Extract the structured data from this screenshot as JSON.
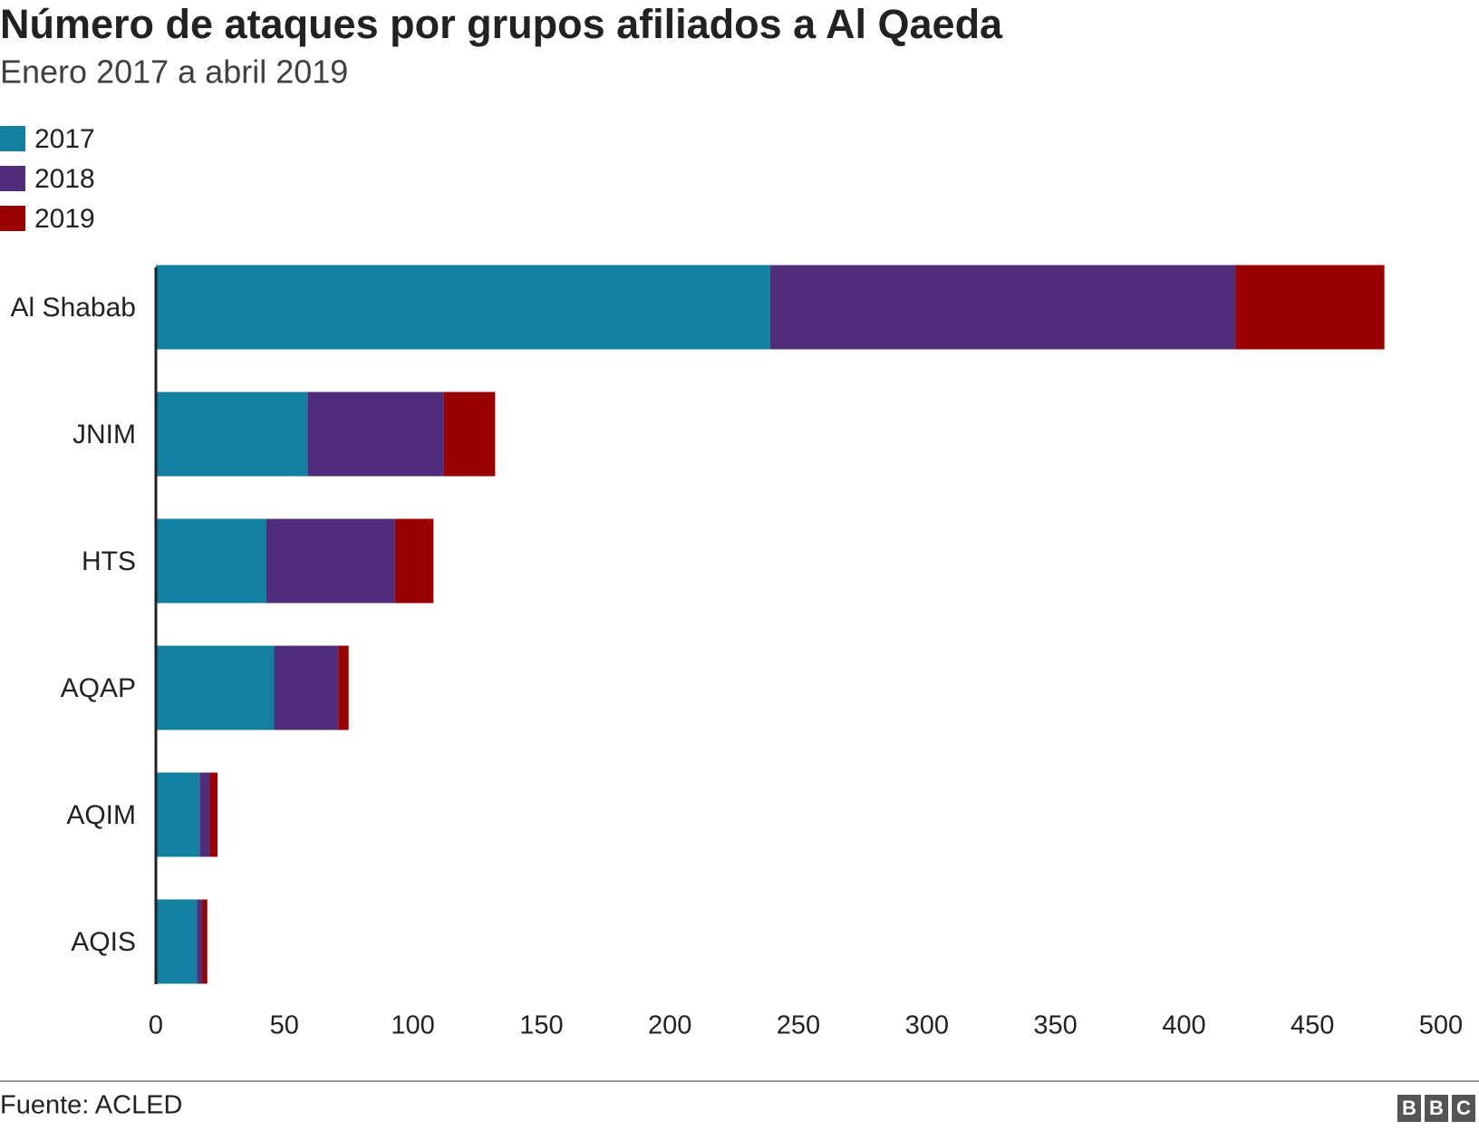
{
  "chart_data": {
    "type": "stacked-barh",
    "title": "Número de ataques por grupos afiliados a Al Qaeda",
    "subtitle": "Enero 2017 a abril 2019",
    "categories": [
      "Al Shabab",
      "JNIM",
      "HTS",
      "AQAP",
      "AQIM",
      "AQIS"
    ],
    "series": [
      {
        "name": "2017",
        "color": "#1380a1",
        "values": [
          239,
          59,
          43,
          46,
          17,
          16
        ]
      },
      {
        "name": "2018",
        "color": "#4f2d7b",
        "values": [
          181,
          53,
          50,
          25,
          4,
          2
        ]
      },
      {
        "name": "2019",
        "color": "#990000",
        "values": [
          58,
          20,
          15,
          4,
          3,
          2
        ]
      }
    ],
    "xlim": [
      0,
      500
    ],
    "xticks": [
      0,
      50,
      100,
      150,
      200,
      250,
      300,
      350,
      400,
      450,
      500
    ],
    "grid": false,
    "legend": "top-left"
  },
  "footer": {
    "source": "Fuente: ACLED",
    "logo": [
      "B",
      "B",
      "C"
    ]
  }
}
